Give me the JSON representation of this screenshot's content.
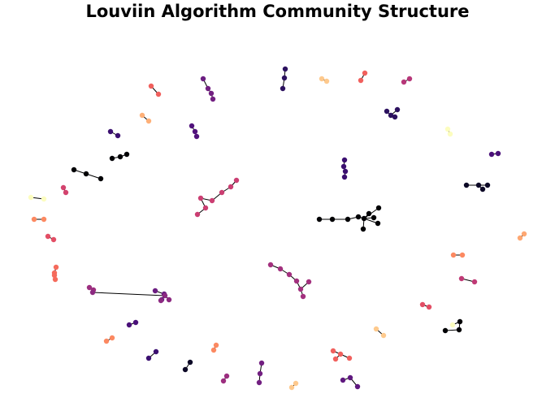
{
  "title": "Louviin Algorithm Community Structure",
  "edge_color": "#000000",
  "nodes": [
    {
      "id": 0,
      "c": "#f1605d"
    },
    {
      "id": 1,
      "c": "#f1605d"
    },
    {
      "id": 2,
      "c": "#d3436e"
    },
    {
      "id": 3,
      "c": "#d3436e"
    },
    {
      "id": 4,
      "c": "#6b1d81"
    },
    {
      "id": 5,
      "c": "#721f81"
    },
    {
      "id": 6,
      "c": "#721f81"
    },
    {
      "id": 7,
      "c": "#721f81"
    },
    {
      "id": 8,
      "c": "#2c115f"
    },
    {
      "id": 9,
      "c": "#2c115f"
    },
    {
      "id": 10,
      "c": "#2c115f"
    },
    {
      "id": 11,
      "c": "#fec98d"
    },
    {
      "id": 12,
      "c": "#fec98d"
    },
    {
      "id": 13,
      "c": "#f1605d"
    },
    {
      "id": 14,
      "c": "#f1605d"
    },
    {
      "id": 15,
      "c": "#b73779"
    },
    {
      "id": 16,
      "c": "#b73779"
    },
    {
      "id": 17,
      "c": "#2c115f"
    },
    {
      "id": 18,
      "c": "#2c115f"
    },
    {
      "id": 19,
      "c": "#2c115f"
    },
    {
      "id": 20,
      "c": "#2c115f"
    },
    {
      "id": 21,
      "c": "#feb078"
    },
    {
      "id": 22,
      "c": "#feb078"
    },
    {
      "id": 23,
      "c": "#51127c"
    },
    {
      "id": 24,
      "c": "#51127c"
    },
    {
      "id": 25,
      "c": "#51127c"
    },
    {
      "id": 26,
      "c": "#3b0f70"
    },
    {
      "id": 27,
      "c": "#3b0f70"
    },
    {
      "id": 28,
      "c": "#fcfdbf"
    },
    {
      "id": 29,
      "c": "#fcfdbf"
    },
    {
      "id": 30,
      "c": "#000004"
    },
    {
      "id": 31,
      "c": "#000004"
    },
    {
      "id": 32,
      "c": "#000004"
    },
    {
      "id": 33,
      "c": "#000004"
    },
    {
      "id": 34,
      "c": "#000004"
    },
    {
      "id": 35,
      "c": "#000004"
    },
    {
      "id": 36,
      "c": "#3b0f70"
    },
    {
      "id": 37,
      "c": "#3b0f70"
    },
    {
      "id": 38,
      "c": "#3b0f70"
    },
    {
      "id": 39,
      "c": "#3b0f70"
    },
    {
      "id": 40,
      "c": "#4a1079"
    },
    {
      "id": 41,
      "c": "#4a1079"
    },
    {
      "id": 42,
      "c": "#cb3e72"
    },
    {
      "id": 43,
      "c": "#cb3e72"
    },
    {
      "id": 44,
      "c": "#cb3e72"
    },
    {
      "id": 45,
      "c": "#cb3e72"
    },
    {
      "id": 46,
      "c": "#cb3e72"
    },
    {
      "id": 47,
      "c": "#cb3e72"
    },
    {
      "id": 48,
      "c": "#cb3e72"
    },
    {
      "id": 49,
      "c": "#fcfdbf"
    },
    {
      "id": 50,
      "c": "#fcfdbf"
    },
    {
      "id": 51,
      "c": "#e34e65"
    },
    {
      "id": 52,
      "c": "#e34e65"
    },
    {
      "id": 53,
      "c": "#0c0826"
    },
    {
      "id": 54,
      "c": "#0c0826"
    },
    {
      "id": 55,
      "c": "#0c0826"
    },
    {
      "id": 56,
      "c": "#0c0826"
    },
    {
      "id": 57,
      "c": "#000004"
    },
    {
      "id": 58,
      "c": "#000004"
    },
    {
      "id": 59,
      "c": "#000004"
    },
    {
      "id": 60,
      "c": "#000004"
    },
    {
      "id": 61,
      "c": "#000004"
    },
    {
      "id": 62,
      "c": "#000004"
    },
    {
      "id": 63,
      "c": "#000004"
    },
    {
      "id": 64,
      "c": "#000004"
    },
    {
      "id": 65,
      "c": "#000004"
    },
    {
      "id": 66,
      "c": "#000004"
    },
    {
      "id": 67,
      "c": "#fc8961"
    },
    {
      "id": 68,
      "c": "#fc8961"
    },
    {
      "id": 69,
      "c": "#fea772"
    },
    {
      "id": 70,
      "c": "#fea772"
    },
    {
      "id": 71,
      "c": "#9c2e7f"
    },
    {
      "id": 72,
      "c": "#9c2e7f"
    },
    {
      "id": 73,
      "c": "#f56b5c"
    },
    {
      "id": 74,
      "c": "#f56b5c"
    },
    {
      "id": 75,
      "c": "#f56b5c"
    },
    {
      "id": 76,
      "c": "#f56b5c"
    },
    {
      "id": 77,
      "c": "#a3307e"
    },
    {
      "id": 78,
      "c": "#a3307e"
    },
    {
      "id": 79,
      "c": "#a3307e"
    },
    {
      "id": 80,
      "c": "#a3307e"
    },
    {
      "id": 81,
      "c": "#a3307e"
    },
    {
      "id": 82,
      "c": "#a3307e"
    },
    {
      "id": 83,
      "c": "#a3307e"
    },
    {
      "id": 84,
      "c": "#fc8961"
    },
    {
      "id": 85,
      "c": "#fc8961"
    },
    {
      "id": 86,
      "c": "#c03a76"
    },
    {
      "id": 87,
      "c": "#c03a76"
    },
    {
      "id": 88,
      "c": "#6b1d81"
    },
    {
      "id": 89,
      "c": "#6b1d81"
    },
    {
      "id": 90,
      "c": "#6b1d81"
    },
    {
      "id": 91,
      "c": "#8c2981"
    },
    {
      "id": 92,
      "c": "#8c2981"
    },
    {
      "id": 93,
      "c": "#8c2981"
    },
    {
      "id": 94,
      "c": "#8c2981"
    },
    {
      "id": 95,
      "c": "#e34e65"
    },
    {
      "id": 96,
      "c": "#e34e65"
    },
    {
      "id": 97,
      "c": "#000004"
    },
    {
      "id": 98,
      "c": "#000004"
    },
    {
      "id": 99,
      "c": "#000004"
    },
    {
      "id": 100,
      "c": "#fcfdbf"
    },
    {
      "id": 101,
      "c": "#4a1079"
    },
    {
      "id": 102,
      "c": "#4a1079"
    },
    {
      "id": 103,
      "c": "#feca8d"
    },
    {
      "id": 104,
      "c": "#feca8d"
    },
    {
      "id": 105,
      "c": "#fc8961"
    },
    {
      "id": 106,
      "c": "#fc8961"
    },
    {
      "id": 107,
      "c": "#3b0f70"
    },
    {
      "id": 108,
      "c": "#3b0f70"
    },
    {
      "id": 109,
      "c": "#f1605d"
    },
    {
      "id": 110,
      "c": "#f1605d"
    },
    {
      "id": 111,
      "c": "#f1605d"
    },
    {
      "id": 112,
      "c": "#f1605d"
    },
    {
      "id": 113,
      "c": "#fc8961"
    },
    {
      "id": 114,
      "c": "#fc8961"
    },
    {
      "id": 115,
      "c": "#0c0826"
    },
    {
      "id": 116,
      "c": "#0c0826"
    },
    {
      "id": 117,
      "c": "#721f81"
    },
    {
      "id": 118,
      "c": "#721f81"
    },
    {
      "id": 119,
      "c": "#721f81"
    },
    {
      "id": 120,
      "c": "#9c2e7f"
    },
    {
      "id": 121,
      "c": "#9c2e7f"
    },
    {
      "id": 122,
      "c": "#fec98d"
    },
    {
      "id": 123,
      "c": "#fec98d"
    },
    {
      "id": 124,
      "c": "#5f187f"
    },
    {
      "id": 125,
      "c": "#5f187f"
    },
    {
      "id": 126,
      "c": "#5f187f"
    }
  ],
  "edges": [
    [
      0,
      1
    ],
    [
      2,
      3
    ],
    [
      4,
      5
    ],
    [
      5,
      6
    ],
    [
      6,
      7
    ],
    [
      8,
      9
    ],
    [
      9,
      10
    ],
    [
      11,
      12
    ],
    [
      13,
      14
    ],
    [
      15,
      16
    ],
    [
      17,
      18
    ],
    [
      18,
      19
    ],
    [
      18,
      20
    ],
    [
      21,
      22
    ],
    [
      23,
      24
    ],
    [
      24,
      25
    ],
    [
      26,
      27
    ],
    [
      28,
      29
    ],
    [
      30,
      31
    ],
    [
      31,
      32
    ],
    [
      33,
      34
    ],
    [
      34,
      35
    ],
    [
      36,
      37
    ],
    [
      37,
      38
    ],
    [
      38,
      39
    ],
    [
      40,
      41
    ],
    [
      42,
      43
    ],
    [
      43,
      44
    ],
    [
      44,
      45
    ],
    [
      45,
      46
    ],
    [
      46,
      47
    ],
    [
      47,
      48
    ],
    [
      49,
      50
    ],
    [
      51,
      52
    ],
    [
      53,
      54
    ],
    [
      54,
      55
    ],
    [
      54,
      56
    ],
    [
      57,
      58
    ],
    [
      58,
      59
    ],
    [
      59,
      60
    ],
    [
      60,
      61
    ],
    [
      61,
      62
    ],
    [
      61,
      63
    ],
    [
      61,
      64
    ],
    [
      61,
      65
    ],
    [
      61,
      66
    ],
    [
      61,
      60
    ],
    [
      67,
      68
    ],
    [
      69,
      70
    ],
    [
      71,
      72
    ],
    [
      73,
      74
    ],
    [
      74,
      75
    ],
    [
      75,
      76
    ],
    [
      77,
      78
    ],
    [
      78,
      79
    ],
    [
      79,
      80
    ],
    [
      80,
      81
    ],
    [
      81,
      82
    ],
    [
      81,
      83
    ],
    [
      84,
      85
    ],
    [
      86,
      87
    ],
    [
      88,
      89
    ],
    [
      89,
      90
    ],
    [
      91,
      92
    ],
    [
      92,
      93
    ],
    [
      92,
      94
    ],
    [
      95,
      96
    ],
    [
      97,
      98
    ],
    [
      98,
      99
    ],
    [
      99,
      100
    ],
    [
      101,
      102
    ],
    [
      103,
      104
    ],
    [
      105,
      106
    ],
    [
      107,
      108
    ],
    [
      109,
      110
    ],
    [
      110,
      111
    ],
    [
      110,
      112
    ],
    [
      113,
      114
    ],
    [
      115,
      116
    ],
    [
      117,
      118
    ],
    [
      118,
      119
    ],
    [
      120,
      121
    ],
    [
      122,
      123
    ],
    [
      124,
      125
    ],
    [
      125,
      126
    ]
  ]
}
